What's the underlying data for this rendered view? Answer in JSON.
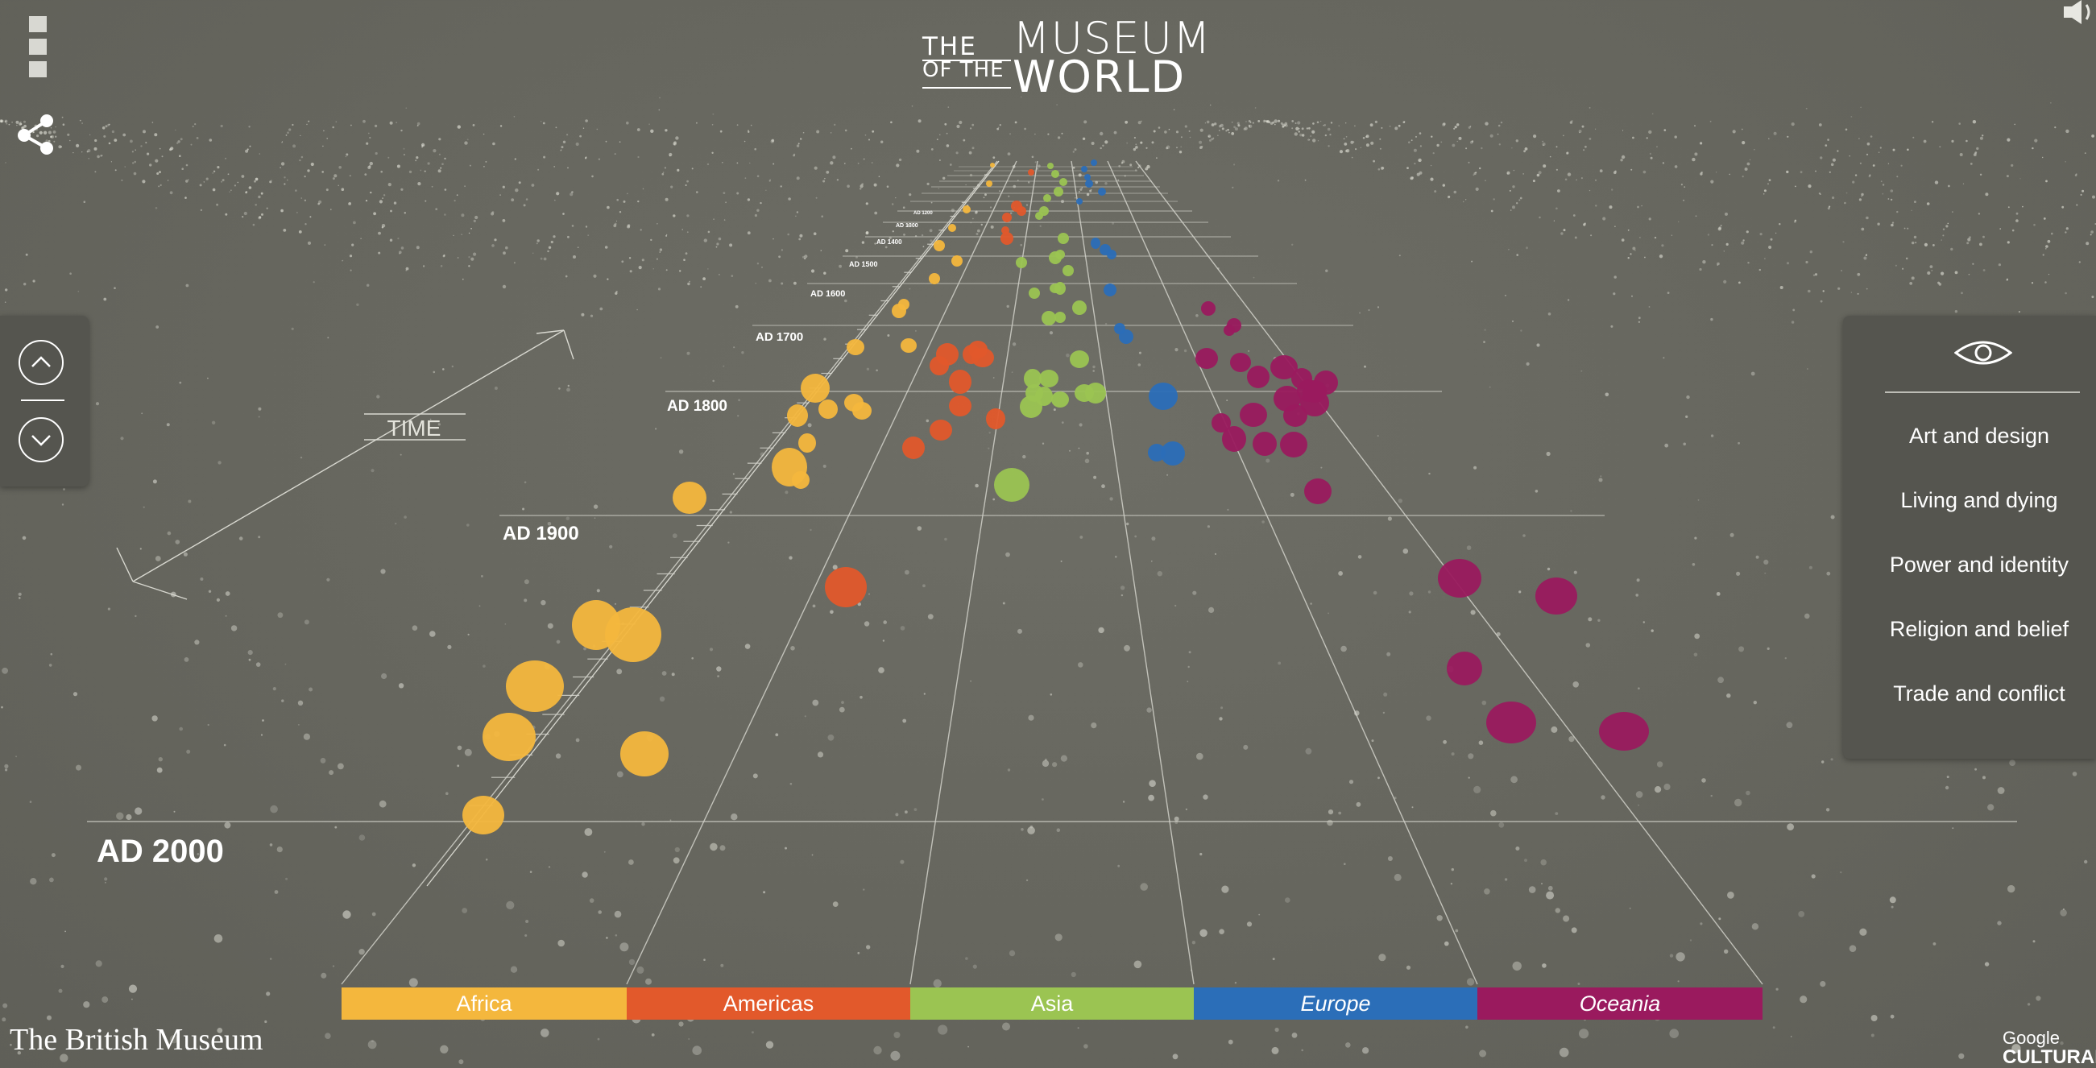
{
  "header": {
    "logo_the": "THE",
    "logo_museum": "MUSEUM",
    "logo_of_the": "OF THE",
    "logo_world": "WORLD"
  },
  "icons": {
    "menu": "menu-icon",
    "share": "share-icon",
    "sound": "speaker-icon",
    "up": "chevron-up-icon",
    "down": "chevron-down-icon",
    "eye": "eye-icon"
  },
  "timeline": {
    "axis_label": "TIME",
    "labels": [
      {
        "text": "AD 2000",
        "size": "big"
      },
      {
        "text": "AD 1900",
        "size": "mid"
      },
      {
        "text": "AD 1800",
        "size": "small"
      },
      {
        "text": "AD 1700",
        "size": "small"
      },
      {
        "text": "AD 1600",
        "size": "tiny"
      },
      {
        "text": "AD 1500",
        "size": "tiny"
      },
      {
        "text": "AD 1400",
        "size": "tiny"
      },
      {
        "text": "AD 1300",
        "size": "tiny"
      },
      {
        "text": "AD 1200",
        "size": "tiny"
      }
    ]
  },
  "filters": {
    "title": "eye-icon",
    "items": [
      "Art and design",
      "Living and dying",
      "Power and identity",
      "Religion and belief",
      "Trade and conflict"
    ]
  },
  "regions": [
    {
      "label": "Africa",
      "color": "#f4b73d"
    },
    {
      "label": "Americas",
      "color": "#e2592b"
    },
    {
      "label": "Asia",
      "color": "#9bc452"
    },
    {
      "label": "Europe",
      "color": "#2b6eb8"
    },
    {
      "label": "Oceania",
      "color": "#9a1a5e"
    }
  ],
  "footer": {
    "british_museum": "The British Museum",
    "google_line1": "Google",
    "google_line2": "CULTURAL"
  }
}
